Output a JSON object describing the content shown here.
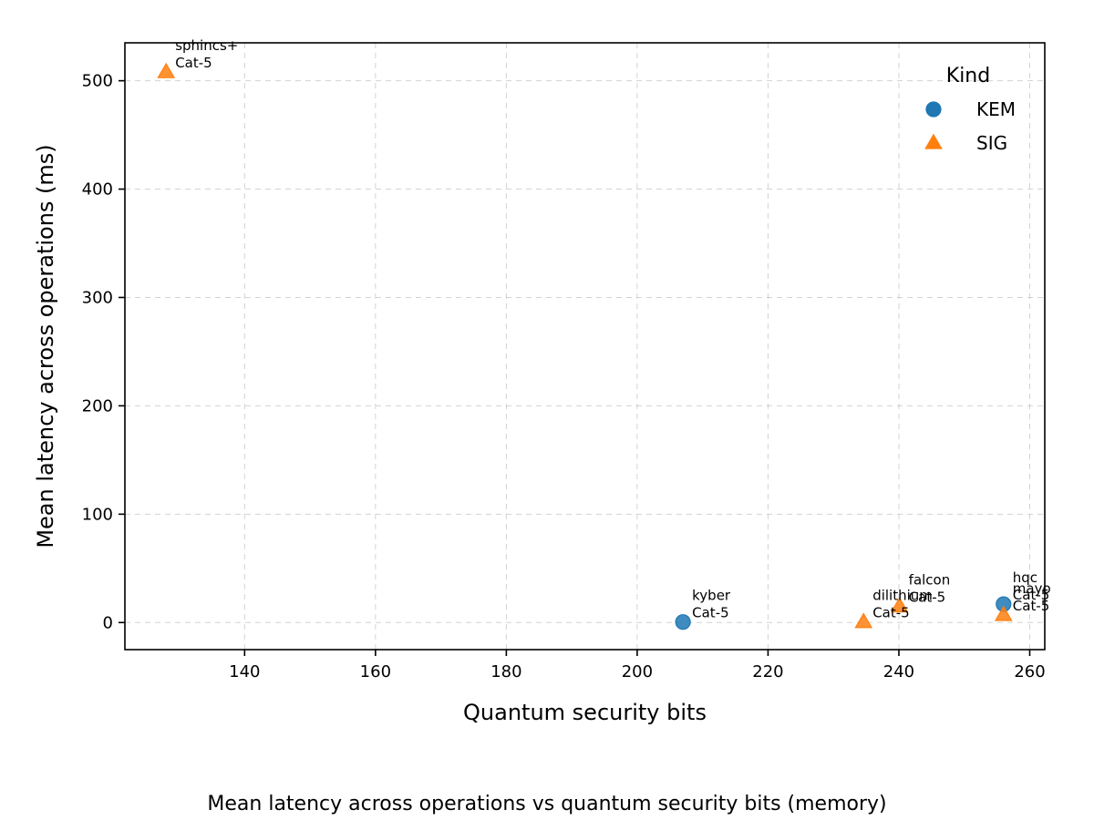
{
  "chart_data": {
    "type": "scatter",
    "title": "",
    "caption": "Mean latency across operations vs quantum security bits (memory)",
    "xlabel": "Quantum security bits",
    "ylabel": "Mean latency across operations (ms)",
    "xlim": [
      121.7,
      262.3
    ],
    "ylim": [
      -25,
      535
    ],
    "xticks": [
      140,
      160,
      180,
      200,
      220,
      240,
      260
    ],
    "yticks": [
      0,
      100,
      200,
      300,
      400,
      500
    ],
    "grid": true,
    "legend": {
      "title": "Kind",
      "placement": "top-right",
      "entries": [
        {
          "label": "KEM",
          "marker": "circle",
          "color": "#1f77b4"
        },
        {
          "label": "SIG",
          "marker": "triangle",
          "color": "#ff7f0e"
        }
      ]
    },
    "series": [
      {
        "name": "KEM",
        "marker": "circle",
        "color": "#1f77b4",
        "points": [
          {
            "x": 207,
            "y": 0.5,
            "label_line1": "kyber",
            "label_line2": "Cat-5"
          },
          {
            "x": 256,
            "y": 17,
            "label_line1": "hqc",
            "label_line2": "Cat-5"
          }
        ]
      },
      {
        "name": "SIG",
        "marker": "triangle",
        "color": "#ff7f0e",
        "points": [
          {
            "x": 128,
            "y": 508,
            "label_line1": "sphincs+",
            "label_line2": "Cat-5"
          },
          {
            "x": 234.6,
            "y": 0.5,
            "label_line1": "dilithium",
            "label_line2": "Cat-5"
          },
          {
            "x": 240.1,
            "y": 15,
            "label_line1": "falcon",
            "label_line2": "Cat-5"
          },
          {
            "x": 256,
            "y": 7,
            "label_line1": "mayo",
            "label_line2": "Cat-5"
          }
        ]
      }
    ]
  }
}
